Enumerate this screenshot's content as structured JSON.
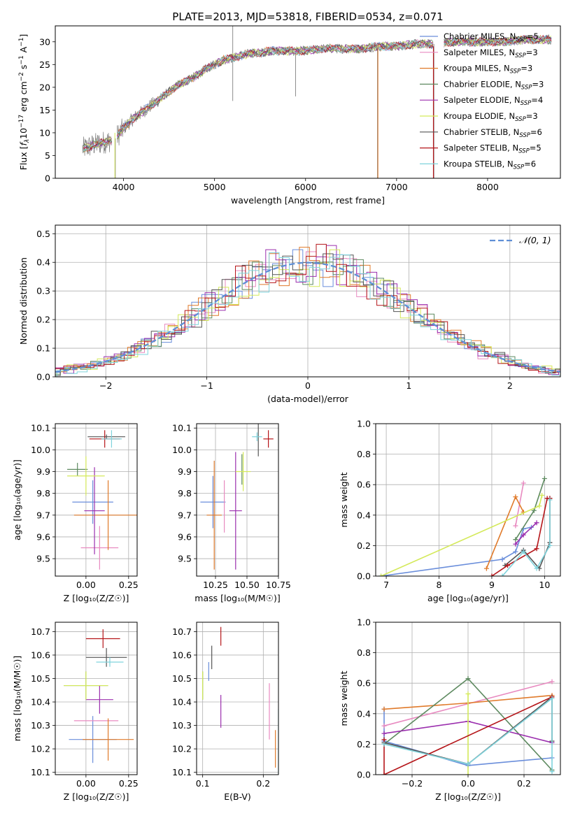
{
  "figure_title": "PLATE=2013, MJD=53818, FIBERID=0534, z=0.071",
  "colors": {
    "Chabrier MILES": "#6a8edb",
    "Salpeter MILES": "#e88ac0",
    "Kroupa MILES": "#e07a2a",
    "Chabrier ELODIE": "#5e8a60",
    "Salpeter ELODIE": "#9b2fae",
    "Kroupa ELODIE": "#d4e95a",
    "Chabrier STELIB": "#555555",
    "Salpeter STELIB": "#b5161a",
    "Kroupa STELIB": "#7fd3dc",
    "data": "#808080",
    "gauss": "#5f8fd6"
  },
  "chart_data": [
    {
      "id": "spectrum",
      "type": "line",
      "xlabel": "wavelength [Angstrom, rest frame]",
      "ylabel_main": "Flux [",
      "ylabel_sub": "λ",
      "ylabel_rest": "10",
      "ylabel_exp1": "−17",
      "ylabel_unit": " erg cm",
      "ylabel_exp2": "−2",
      "ylabel_unit2": " s",
      "ylabel_exp3": "−1",
      "ylabel_unit3": " A",
      "ylabel_exp4": "−1",
      "ylabel_end": "]",
      "ylabel_f": "f",
      "xlim": [
        3250,
        8800
      ],
      "ylim": [
        0,
        33.5
      ],
      "xticks": [
        4000,
        5000,
        6000,
        7000,
        8000
      ],
      "yticks": [
        0,
        5,
        10,
        15,
        20,
        25,
        30
      ],
      "legend": [
        {
          "name": "Chabrier MILES",
          "n": "5"
        },
        {
          "name": "Salpeter MILES",
          "n": "3"
        },
        {
          "name": "Kroupa MILES",
          "n": "3"
        },
        {
          "name": "Chabrier ELODIE",
          "n": "3"
        },
        {
          "name": "Salpeter ELODIE",
          "n": "4"
        },
        {
          "name": "Kroupa ELODIE",
          "n": "3"
        },
        {
          "name": "Chabrier STELIB",
          "n": "6"
        },
        {
          "name": "Salpeter STELIB",
          "n": "5"
        },
        {
          "name": "Kroupa STELIB",
          "n": "6"
        }
      ],
      "legend_sub": "SSP",
      "legend_n": "N",
      "legend_placement": "right",
      "continuum": [
        [
          3550,
          6.5
        ],
        [
          3700,
          7.5
        ],
        [
          3900,
          8.5
        ],
        [
          4000,
          11
        ],
        [
          4100,
          13
        ],
        [
          4200,
          14.5
        ],
        [
          4300,
          16
        ],
        [
          4400,
          17.5
        ],
        [
          4500,
          19
        ],
        [
          4600,
          20.5
        ],
        [
          4700,
          21.5
        ],
        [
          4800,
          22.5
        ],
        [
          4900,
          24
        ],
        [
          5000,
          25
        ],
        [
          5100,
          26
        ],
        [
          5200,
          26.5
        ],
        [
          5300,
          27
        ],
        [
          5400,
          27.5
        ],
        [
          5500,
          27.5
        ],
        [
          5600,
          28
        ],
        [
          5800,
          28
        ],
        [
          6000,
          28
        ],
        [
          6200,
          28.5
        ],
        [
          6400,
          28.5
        ],
        [
          6600,
          28.5
        ],
        [
          6800,
          29
        ],
        [
          7000,
          29
        ],
        [
          7200,
          29.5
        ],
        [
          7400,
          29.5
        ],
        [
          7600,
          30
        ],
        [
          7800,
          30
        ],
        [
          8000,
          30
        ],
        [
          8200,
          30
        ],
        [
          8400,
          30.5
        ],
        [
          8600,
          30.5
        ],
        [
          8700,
          30.5
        ]
      ],
      "spikes": [
        [
          5200,
          33.5
        ],
        [
          5200,
          17
        ],
        [
          5890,
          18
        ],
        [
          7410,
          0
        ],
        [
          6790,
          0
        ],
        [
          3910,
          0
        ]
      ]
    },
    {
      "id": "residuals",
      "type": "histogram",
      "xlabel": "(data-model)/error",
      "ylabel": "Normed distribution",
      "xlim": [
        -2.5,
        2.5
      ],
      "ylim": [
        0,
        0.53
      ],
      "xticks": [
        -2,
        -1,
        0,
        1,
        2
      ],
      "xtick_labels": [
        "−2",
        "−1",
        "0",
        "1",
        "2"
      ],
      "yticks": [
        0.0,
        0.1,
        0.2,
        0.3,
        0.4,
        0.5
      ],
      "ytick_labels": [
        "0.0",
        "0.1",
        "0.2",
        "0.3",
        "0.4",
        "0.5"
      ],
      "bin_width": 0.1,
      "gauss_label": "𝒩(0, 1)",
      "legend_placement": "top-right"
    },
    {
      "id": "age-vs-Z",
      "type": "scatter",
      "xlabel": "Z [log₁₀(Z/Z☉)]",
      "ylabel": "age  [log₁₀(age/yr)]",
      "xlim": [
        -0.18,
        0.3
      ],
      "ylim": [
        9.42,
        10.12
      ],
      "xticks": [
        0.0,
        0.25
      ],
      "xtick_labels": [
        "0.00",
        "0.25"
      ],
      "yticks": [
        9.5,
        9.6,
        9.7,
        9.8,
        9.9,
        10.0,
        10.1
      ],
      "ytick_labels": [
        "9.5",
        "9.6",
        "9.7",
        "9.8",
        "9.9",
        "10.0",
        "10.1"
      ],
      "points": [
        {
          "s": "Chabrier MILES",
          "x": 0.04,
          "y": 9.76,
          "xe": 0.12,
          "ye": 0.1
        },
        {
          "s": "Salpeter MILES",
          "x": 0.08,
          "y": 9.55,
          "xe": 0.11,
          "ye": 0.1
        },
        {
          "s": "Kroupa MILES",
          "x": 0.13,
          "y": 9.7,
          "xe": 0.2,
          "ye": 0.16
        },
        {
          "s": "Chabrier ELODIE",
          "x": -0.05,
          "y": 9.91,
          "xe": 0.06,
          "ye": 0.03
        },
        {
          "s": "Salpeter ELODIE",
          "x": 0.05,
          "y": 9.72,
          "xe": 0.06,
          "ye": 0.2
        },
        {
          "s": "Kroupa ELODIE",
          "x": 0.0,
          "y": 9.88,
          "xe": 0.11,
          "ye": 0.09
        },
        {
          "s": "Chabrier STELIB",
          "x": 0.12,
          "y": 10.06,
          "xe": 0.11,
          "ye": 0.01
        },
        {
          "s": "Salpeter STELIB",
          "x": 0.11,
          "y": 10.05,
          "xe": 0.09,
          "ye": 0.04
        },
        {
          "s": "Kroupa STELIB",
          "x": 0.15,
          "y": 10.05,
          "xe": 0.06,
          "ye": 0.04
        }
      ]
    },
    {
      "id": "age-vs-mass",
      "type": "scatter",
      "xlabel": "mass [log₁₀(M/M☉)]",
      "xlim": [
        10.1,
        10.75
      ],
      "ylim": [
        9.42,
        10.12
      ],
      "xticks": [
        10.25,
        10.5,
        10.75
      ],
      "xtick_labels": [
        "10.25",
        "10.50",
        "10.75"
      ],
      "yticks": [
        9.5,
        9.6,
        9.7,
        9.8,
        9.9,
        10.0,
        10.1
      ],
      "ytick_labels": [
        "9.5",
        "9.6",
        "9.7",
        "9.8",
        "9.9",
        "10.0",
        "10.1"
      ],
      "points": [
        {
          "s": "Chabrier MILES",
          "x": 10.23,
          "y": 9.76,
          "xe": 0.1,
          "ye": 0.12
        },
        {
          "s": "Salpeter MILES",
          "x": 10.32,
          "y": 9.74,
          "xe": 0.0,
          "ye": 0.12
        },
        {
          "s": "Kroupa MILES",
          "x": 10.24,
          "y": 9.7,
          "xe": 0.06,
          "ye": 0.25
        },
        {
          "s": "Chabrier ELODIE",
          "x": 10.46,
          "y": 9.91,
          "xe": 0.0,
          "ye": 0.07
        },
        {
          "s": "Salpeter ELODIE",
          "x": 10.41,
          "y": 9.72,
          "xe": 0.05,
          "ye": 0.27
        },
        {
          "s": "Kroupa ELODIE",
          "x": 10.47,
          "y": 9.9,
          "xe": 0.06,
          "ye": 0.09
        },
        {
          "s": "Chabrier STELIB",
          "x": 10.59,
          "y": 10.05,
          "xe": 0.0,
          "ye": 0.08
        },
        {
          "s": "Salpeter STELIB",
          "x": 10.67,
          "y": 10.05,
          "xe": 0.04,
          "ye": 0.04
        },
        {
          "s": "Kroupa STELIB",
          "x": 10.58,
          "y": 10.06,
          "xe": 0.04,
          "ye": 0.02
        }
      ]
    },
    {
      "id": "massweight-vs-age",
      "type": "line",
      "xlabel": "age  [log₁₀(age/yr)]",
      "ylabel": "mass weight",
      "xlim": [
        6.8,
        10.3
      ],
      "ylim": [
        0.0,
        1.0
      ],
      "xticks": [
        7,
        8,
        9,
        10
      ],
      "xtick_labels": [
        "7",
        "8",
        "9",
        "10"
      ],
      "yticks": [
        0.0,
        0.2,
        0.4,
        0.6,
        0.8,
        1.0
      ],
      "ytick_labels": [
        "0.0",
        "0.2",
        "0.4",
        "0.6",
        "0.8",
        "1.0"
      ],
      "series": [
        {
          "s": "Chabrier MILES",
          "pts": [
            [
              6.9,
              0.0
            ],
            [
              9.2,
              0.11
            ],
            [
              9.45,
              0.16
            ],
            [
              9.6,
              0.31
            ],
            [
              9.75,
              0.32
            ]
          ]
        },
        {
          "s": "Salpeter MILES",
          "pts": [
            [
              9.45,
              0.33
            ],
            [
              9.6,
              0.61
            ]
          ]
        },
        {
          "s": "Kroupa MILES",
          "pts": [
            [
              8.9,
              0.05
            ],
            [
              9.45,
              0.52
            ],
            [
              9.6,
              0.42
            ]
          ]
        },
        {
          "s": "Chabrier ELODIE",
          "pts": [
            [
              9.45,
              0.24
            ],
            [
              9.8,
              0.43
            ],
            [
              10.0,
              0.64
            ]
          ]
        },
        {
          "s": "Salpeter ELODIE",
          "pts": [
            [
              9.45,
              0.21
            ],
            [
              9.6,
              0.27
            ],
            [
              9.85,
              0.35
            ]
          ]
        },
        {
          "s": "Kroupa ELODIE",
          "pts": [
            [
              6.9,
              0.0
            ],
            [
              9.9,
              0.46
            ],
            [
              9.95,
              0.53
            ]
          ]
        },
        {
          "s": "Chabrier STELIB",
          "pts": [
            [
              9.25,
              0.07
            ],
            [
              9.6,
              0.17
            ],
            [
              9.9,
              0.05
            ],
            [
              10.1,
              0.22
            ],
            [
              10.1,
              0.51
            ]
          ]
        },
        {
          "s": "Salpeter STELIB",
          "pts": [
            [
              9.0,
              0.0
            ],
            [
              9.3,
              0.07
            ],
            [
              9.85,
              0.18
            ],
            [
              10.05,
              0.51
            ],
            [
              10.1,
              0.51
            ]
          ]
        },
        {
          "s": "Kroupa STELIB",
          "pts": [
            [
              9.2,
              0.0
            ],
            [
              9.6,
              0.16
            ],
            [
              9.85,
              0.05
            ],
            [
              10.1,
              0.2
            ],
            [
              10.1,
              0.5
            ]
          ]
        }
      ]
    },
    {
      "id": "mass-vs-Z",
      "type": "scatter",
      "xlabel": "Z [log₁₀(Z/Z☉)]",
      "ylabel": "mass [log₁₀(M/M☉)]",
      "xlim": [
        -0.18,
        0.3
      ],
      "ylim": [
        10.09,
        10.74
      ],
      "xticks": [
        0.0,
        0.25
      ],
      "xtick_labels": [
        "0.00",
        "0.25"
      ],
      "yticks": [
        10.1,
        10.2,
        10.3,
        10.4,
        10.5,
        10.6,
        10.7
      ],
      "ytick_labels": [
        "10.1",
        "10.2",
        "10.3",
        "10.4",
        "10.5",
        "10.6",
        "10.7"
      ],
      "points": [
        {
          "s": "Chabrier MILES",
          "x": 0.04,
          "y": 10.24,
          "xe": 0.14,
          "ye": 0.1
        },
        {
          "s": "Salpeter MILES",
          "x": 0.06,
          "y": 10.32,
          "xe": 0.13,
          "ye": 0.0
        },
        {
          "s": "Kroupa MILES",
          "x": 0.13,
          "y": 10.24,
          "xe": 0.15,
          "ye": 0.09
        },
        {
          "s": "Chabrier ELODIE",
          "x": 0.0,
          "y": 10.47,
          "xe": 0.13,
          "ye": 0.06
        },
        {
          "s": "Salpeter ELODIE",
          "x": 0.08,
          "y": 10.41,
          "xe": 0.08,
          "ye": 0.06
        },
        {
          "s": "Kroupa ELODIE",
          "x": 0.0,
          "y": 10.47,
          "xe": 0.13,
          "ye": 0.06
        },
        {
          "s": "Chabrier STELIB",
          "x": 0.12,
          "y": 10.59,
          "xe": 0.12,
          "ye": 0.04
        },
        {
          "s": "Salpeter STELIB",
          "x": 0.1,
          "y": 10.67,
          "xe": 0.1,
          "ye": 0.04
        },
        {
          "s": "Kroupa STELIB",
          "x": 0.14,
          "y": 10.57,
          "xe": 0.08,
          "ye": 0.02
        }
      ]
    },
    {
      "id": "mass-vs-ebv",
      "type": "scatter",
      "xlabel": "E(B-V)",
      "xlim": [
        0.09,
        0.225
      ],
      "ylim": [
        10.09,
        10.74
      ],
      "xticks": [
        0.1,
        0.2
      ],
      "xtick_labels": [
        "0.1",
        "0.2"
      ],
      "yticks": [
        10.1,
        10.2,
        10.3,
        10.4,
        10.5,
        10.6,
        10.7
      ],
      "ytick_labels": [
        "10.1",
        "10.2",
        "10.3",
        "10.4",
        "10.5",
        "10.6",
        "10.7"
      ],
      "points": [
        {
          "s": "Chabrier MILES",
          "x": 0.11,
          "y": 10.53,
          "xe": 0.0,
          "ye": 0.04
        },
        {
          "s": "Salpeter MILES",
          "x": 0.21,
          "y": 10.36,
          "xe": 0.0,
          "ye": 0.12
        },
        {
          "s": "Kroupa MILES",
          "x": 0.22,
          "y": 10.2,
          "xe": 0.0,
          "ye": 0.08
        },
        {
          "s": "Chabrier ELODIE",
          "x": 0.1,
          "y": 10.47,
          "xe": 0.0,
          "ye": 0.06
        },
        {
          "s": "Salpeter ELODIE",
          "x": 0.13,
          "y": 10.36,
          "xe": 0.0,
          "ye": 0.07
        },
        {
          "s": "Kroupa ELODIE",
          "x": 0.1,
          "y": 10.47,
          "xe": 0.0,
          "ye": 0.06
        },
        {
          "s": "Chabrier STELIB",
          "x": 0.115,
          "y": 10.59,
          "xe": 0.0,
          "ye": 0.05
        },
        {
          "s": "Salpeter STELIB",
          "x": 0.13,
          "y": 10.68,
          "xe": 0.0,
          "ye": 0.04
        },
        {
          "s": "Kroupa STELIB",
          "x": 0.225,
          "y": 10.23,
          "xe": 0.0,
          "ye": 0.14
        }
      ]
    },
    {
      "id": "massweight-vs-Z",
      "type": "line",
      "xlabel": "Z [log₁₀(Z/Z☉)]",
      "ylabel": "mass weight",
      "xlim": [
        -0.33,
        0.33
      ],
      "ylim": [
        0.0,
        1.0
      ],
      "xticks": [
        -0.2,
        0.0,
        0.2
      ],
      "xtick_labels": [
        "−0.2",
        "0.0",
        "0.2"
      ],
      "yticks": [
        0.0,
        0.2,
        0.4,
        0.6,
        0.8,
        1.0
      ],
      "ytick_labels": [
        "0.0",
        "0.2",
        "0.4",
        "0.6",
        "0.8",
        "1.0"
      ],
      "series": [
        {
          "s": "Chabrier MILES",
          "pts": [
            [
              -0.3,
              0.43
            ],
            [
              -0.3,
              0.22
            ],
            [
              0.0,
              0.06
            ],
            [
              0.3,
              0.11
            ]
          ]
        },
        {
          "s": "Salpeter MILES",
          "pts": [
            [
              -0.3,
              0.32
            ],
            [
              0.3,
              0.61
            ]
          ]
        },
        {
          "s": "Kroupa MILES",
          "pts": [
            [
              -0.3,
              0.43
            ],
            [
              0.0,
              0.47
            ],
            [
              0.3,
              0.52
            ]
          ]
        },
        {
          "s": "Chabrier ELODIE",
          "pts": [
            [
              -0.3,
              0.2
            ],
            [
              0.0,
              0.63
            ],
            [
              0.3,
              0.03
            ]
          ]
        },
        {
          "s": "Salpeter ELODIE",
          "pts": [
            [
              -0.3,
              0.27
            ],
            [
              0.0,
              0.35
            ],
            [
              0.3,
              0.21
            ]
          ]
        },
        {
          "s": "Kroupa ELODIE",
          "pts": [
            [
              0.0,
              0.0
            ],
            [
              0.0,
              0.53
            ]
          ]
        },
        {
          "s": "Chabrier STELIB",
          "pts": [
            [
              -0.3,
              0.21
            ],
            [
              0.0,
              0.07
            ],
            [
              0.3,
              0.51
            ],
            [
              0.3,
              0.22
            ]
          ]
        },
        {
          "s": "Salpeter STELIB",
          "pts": [
            [
              -0.3,
              0.23
            ],
            [
              -0.3,
              0.0
            ],
            [
              0.3,
              0.51
            ]
          ]
        },
        {
          "s": "Kroupa STELIB",
          "pts": [
            [
              -0.3,
              0.2
            ],
            [
              0.0,
              0.07
            ],
            [
              0.3,
              0.5
            ],
            [
              0.3,
              0.02
            ]
          ]
        }
      ]
    }
  ]
}
